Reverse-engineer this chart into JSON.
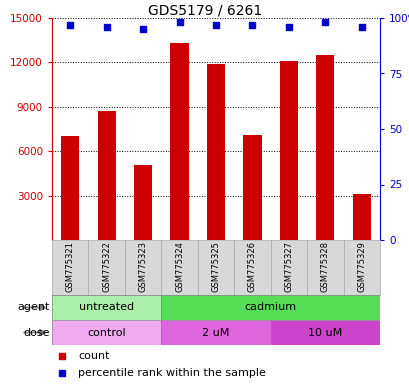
{
  "title": "GDS5179 / 6261",
  "samples": [
    "GSM775321",
    "GSM775322",
    "GSM775323",
    "GSM775324",
    "GSM775325",
    "GSM775326",
    "GSM775327",
    "GSM775328",
    "GSM775329"
  ],
  "counts": [
    7000,
    8700,
    5100,
    13300,
    11900,
    7100,
    12100,
    12500,
    3100
  ],
  "percentiles": [
    97,
    96,
    95,
    98,
    97,
    97,
    96,
    98,
    96
  ],
  "bar_color": "#cc0000",
  "dot_color": "#0000cc",
  "ylim_left": [
    0,
    15000
  ],
  "ylim_right": [
    0,
    100
  ],
  "yticks_left": [
    3000,
    6000,
    9000,
    12000,
    15000
  ],
  "yticks_right": [
    0,
    25,
    50,
    75,
    100
  ],
  "ytick_labels_right": [
    "0",
    "25",
    "50",
    "75",
    "100%"
  ],
  "agent_groups": [
    {
      "label": "untreated",
      "start": 0,
      "end": 3,
      "color": "#aaf0aa"
    },
    {
      "label": "cadmium",
      "start": 3,
      "end": 9,
      "color": "#55dd55"
    }
  ],
  "dose_groups": [
    {
      "label": "control",
      "start": 0,
      "end": 3,
      "color": "#f0aaf0"
    },
    {
      "label": "2 uM",
      "start": 3,
      "end": 6,
      "color": "#dd66dd"
    },
    {
      "label": "10 uM",
      "start": 6,
      "end": 9,
      "color": "#cc44cc"
    }
  ],
  "legend_count_color": "#cc0000",
  "legend_percentile_color": "#0000cc",
  "background_color": "#ffffff",
  "bar_width": 0.5,
  "sample_box_color": "#d8d8d8",
  "sample_box_edge": "#aaaaaa"
}
